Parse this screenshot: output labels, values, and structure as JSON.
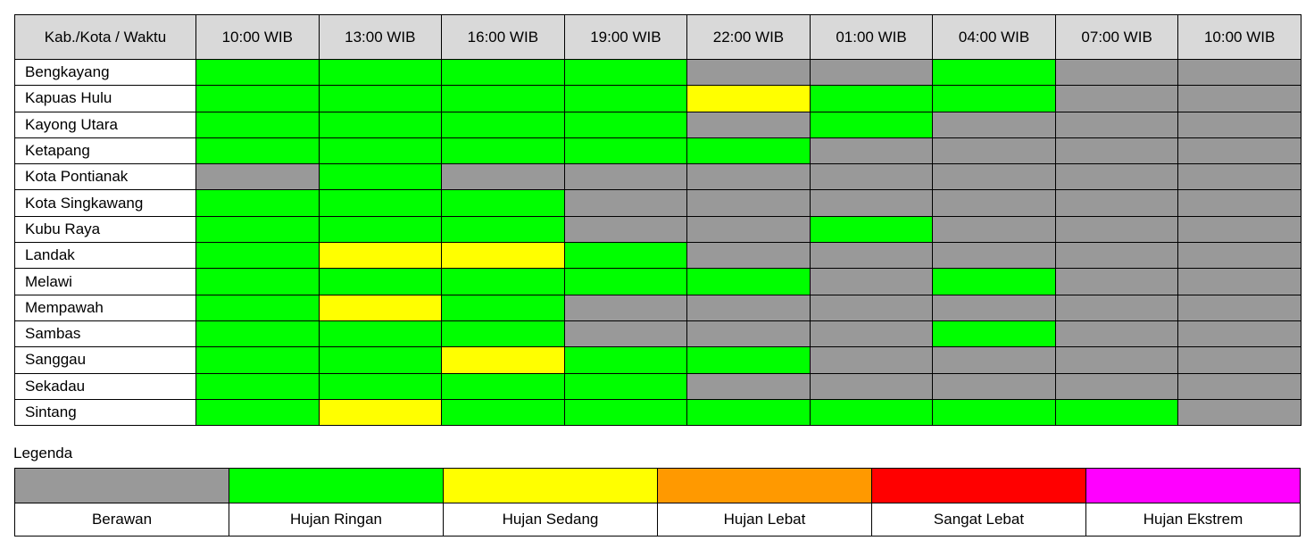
{
  "table": {
    "header_label": "Kab./Kota / Waktu"
  },
  "legend": {
    "title": "Legenda",
    "items": [
      {
        "key": "berawan",
        "label": "Berawan",
        "color": "#999999"
      },
      {
        "key": "hujan_ringan",
        "label": "Hujan Ringan",
        "color": "#00ff00"
      },
      {
        "key": "hujan_sedang",
        "label": "Hujan Sedang",
        "color": "#ffff00"
      },
      {
        "key": "hujan_lebat",
        "label": "Hujan Lebat",
        "color": "#ff9900"
      },
      {
        "key": "sangat_lebat",
        "label": "Sangat Lebat",
        "color": "#ff0000"
      },
      {
        "key": "hujan_ekstrem",
        "label": "Hujan Ekstrem",
        "color": "#ff00ff"
      }
    ]
  },
  "chart_data": {
    "type": "heatmap",
    "title": "",
    "xlabel": "Waktu",
    "ylabel": "Kab./Kota",
    "times": [
      "10:00 WIB",
      "13:00 WIB",
      "16:00 WIB",
      "19:00 WIB",
      "22:00 WIB",
      "01:00 WIB",
      "04:00 WIB",
      "07:00 WIB",
      "10:00 WIB"
    ],
    "rows": [
      {
        "name": "Bengkayang",
        "values": [
          "Hujan Ringan",
          "Hujan Ringan",
          "Hujan Ringan",
          "Hujan Ringan",
          "Berawan",
          "Berawan",
          "Hujan Ringan",
          "Berawan",
          "Berawan"
        ]
      },
      {
        "name": "Kapuas Hulu",
        "values": [
          "Hujan Ringan",
          "Hujan Ringan",
          "Hujan Ringan",
          "Hujan Ringan",
          "Hujan Sedang",
          "Hujan Ringan",
          "Hujan Ringan",
          "Berawan",
          "Berawan"
        ]
      },
      {
        "name": "Kayong Utara",
        "values": [
          "Hujan Ringan",
          "Hujan Ringan",
          "Hujan Ringan",
          "Hujan Ringan",
          "Berawan",
          "Hujan Ringan",
          "Berawan",
          "Berawan",
          "Berawan"
        ]
      },
      {
        "name": "Ketapang",
        "values": [
          "Hujan Ringan",
          "Hujan Ringan",
          "Hujan Ringan",
          "Hujan Ringan",
          "Hujan Ringan",
          "Berawan",
          "Berawan",
          "Berawan",
          "Berawan"
        ]
      },
      {
        "name": "Kota Pontianak",
        "values": [
          "Berawan",
          "Hujan Ringan",
          "Berawan",
          "Berawan",
          "Berawan",
          "Berawan",
          "Berawan",
          "Berawan",
          "Berawan"
        ]
      },
      {
        "name": "Kota Singkawang",
        "values": [
          "Hujan Ringan",
          "Hujan Ringan",
          "Hujan Ringan",
          "Berawan",
          "Berawan",
          "Berawan",
          "Berawan",
          "Berawan",
          "Berawan"
        ]
      },
      {
        "name": "Kubu Raya",
        "values": [
          "Hujan Ringan",
          "Hujan Ringan",
          "Hujan Ringan",
          "Berawan",
          "Berawan",
          "Hujan Ringan",
          "Berawan",
          "Berawan",
          "Berawan"
        ]
      },
      {
        "name": "Landak",
        "values": [
          "Hujan Ringan",
          "Hujan Sedang",
          "Hujan Sedang",
          "Hujan Ringan",
          "Berawan",
          "Berawan",
          "Berawan",
          "Berawan",
          "Berawan"
        ]
      },
      {
        "name": "Melawi",
        "values": [
          "Hujan Ringan",
          "Hujan Ringan",
          "Hujan Ringan",
          "Hujan Ringan",
          "Hujan Ringan",
          "Berawan",
          "Hujan Ringan",
          "Berawan",
          "Berawan"
        ]
      },
      {
        "name": "Mempawah",
        "values": [
          "Hujan Ringan",
          "Hujan Sedang",
          "Hujan Ringan",
          "Berawan",
          "Berawan",
          "Berawan",
          "Berawan",
          "Berawan",
          "Berawan"
        ]
      },
      {
        "name": "Sambas",
        "values": [
          "Hujan Ringan",
          "Hujan Ringan",
          "Hujan Ringan",
          "Berawan",
          "Berawan",
          "Berawan",
          "Hujan Ringan",
          "Berawan",
          "Berawan"
        ]
      },
      {
        "name": "Sanggau",
        "values": [
          "Hujan Ringan",
          "Hujan Ringan",
          "Hujan Sedang",
          "Hujan Ringan",
          "Hujan Ringan",
          "Berawan",
          "Berawan",
          "Berawan",
          "Berawan"
        ]
      },
      {
        "name": "Sekadau",
        "values": [
          "Hujan Ringan",
          "Hujan Ringan",
          "Hujan Ringan",
          "Hujan Ringan",
          "Berawan",
          "Berawan",
          "Berawan",
          "Berawan",
          "Berawan"
        ]
      },
      {
        "name": "Sintang",
        "values": [
          "Hujan Ringan",
          "Hujan Sedang",
          "Hujan Ringan",
          "Hujan Ringan",
          "Hujan Ringan",
          "Hujan Ringan",
          "Hujan Ringan",
          "Hujan Ringan",
          "Berawan"
        ]
      }
    ]
  }
}
